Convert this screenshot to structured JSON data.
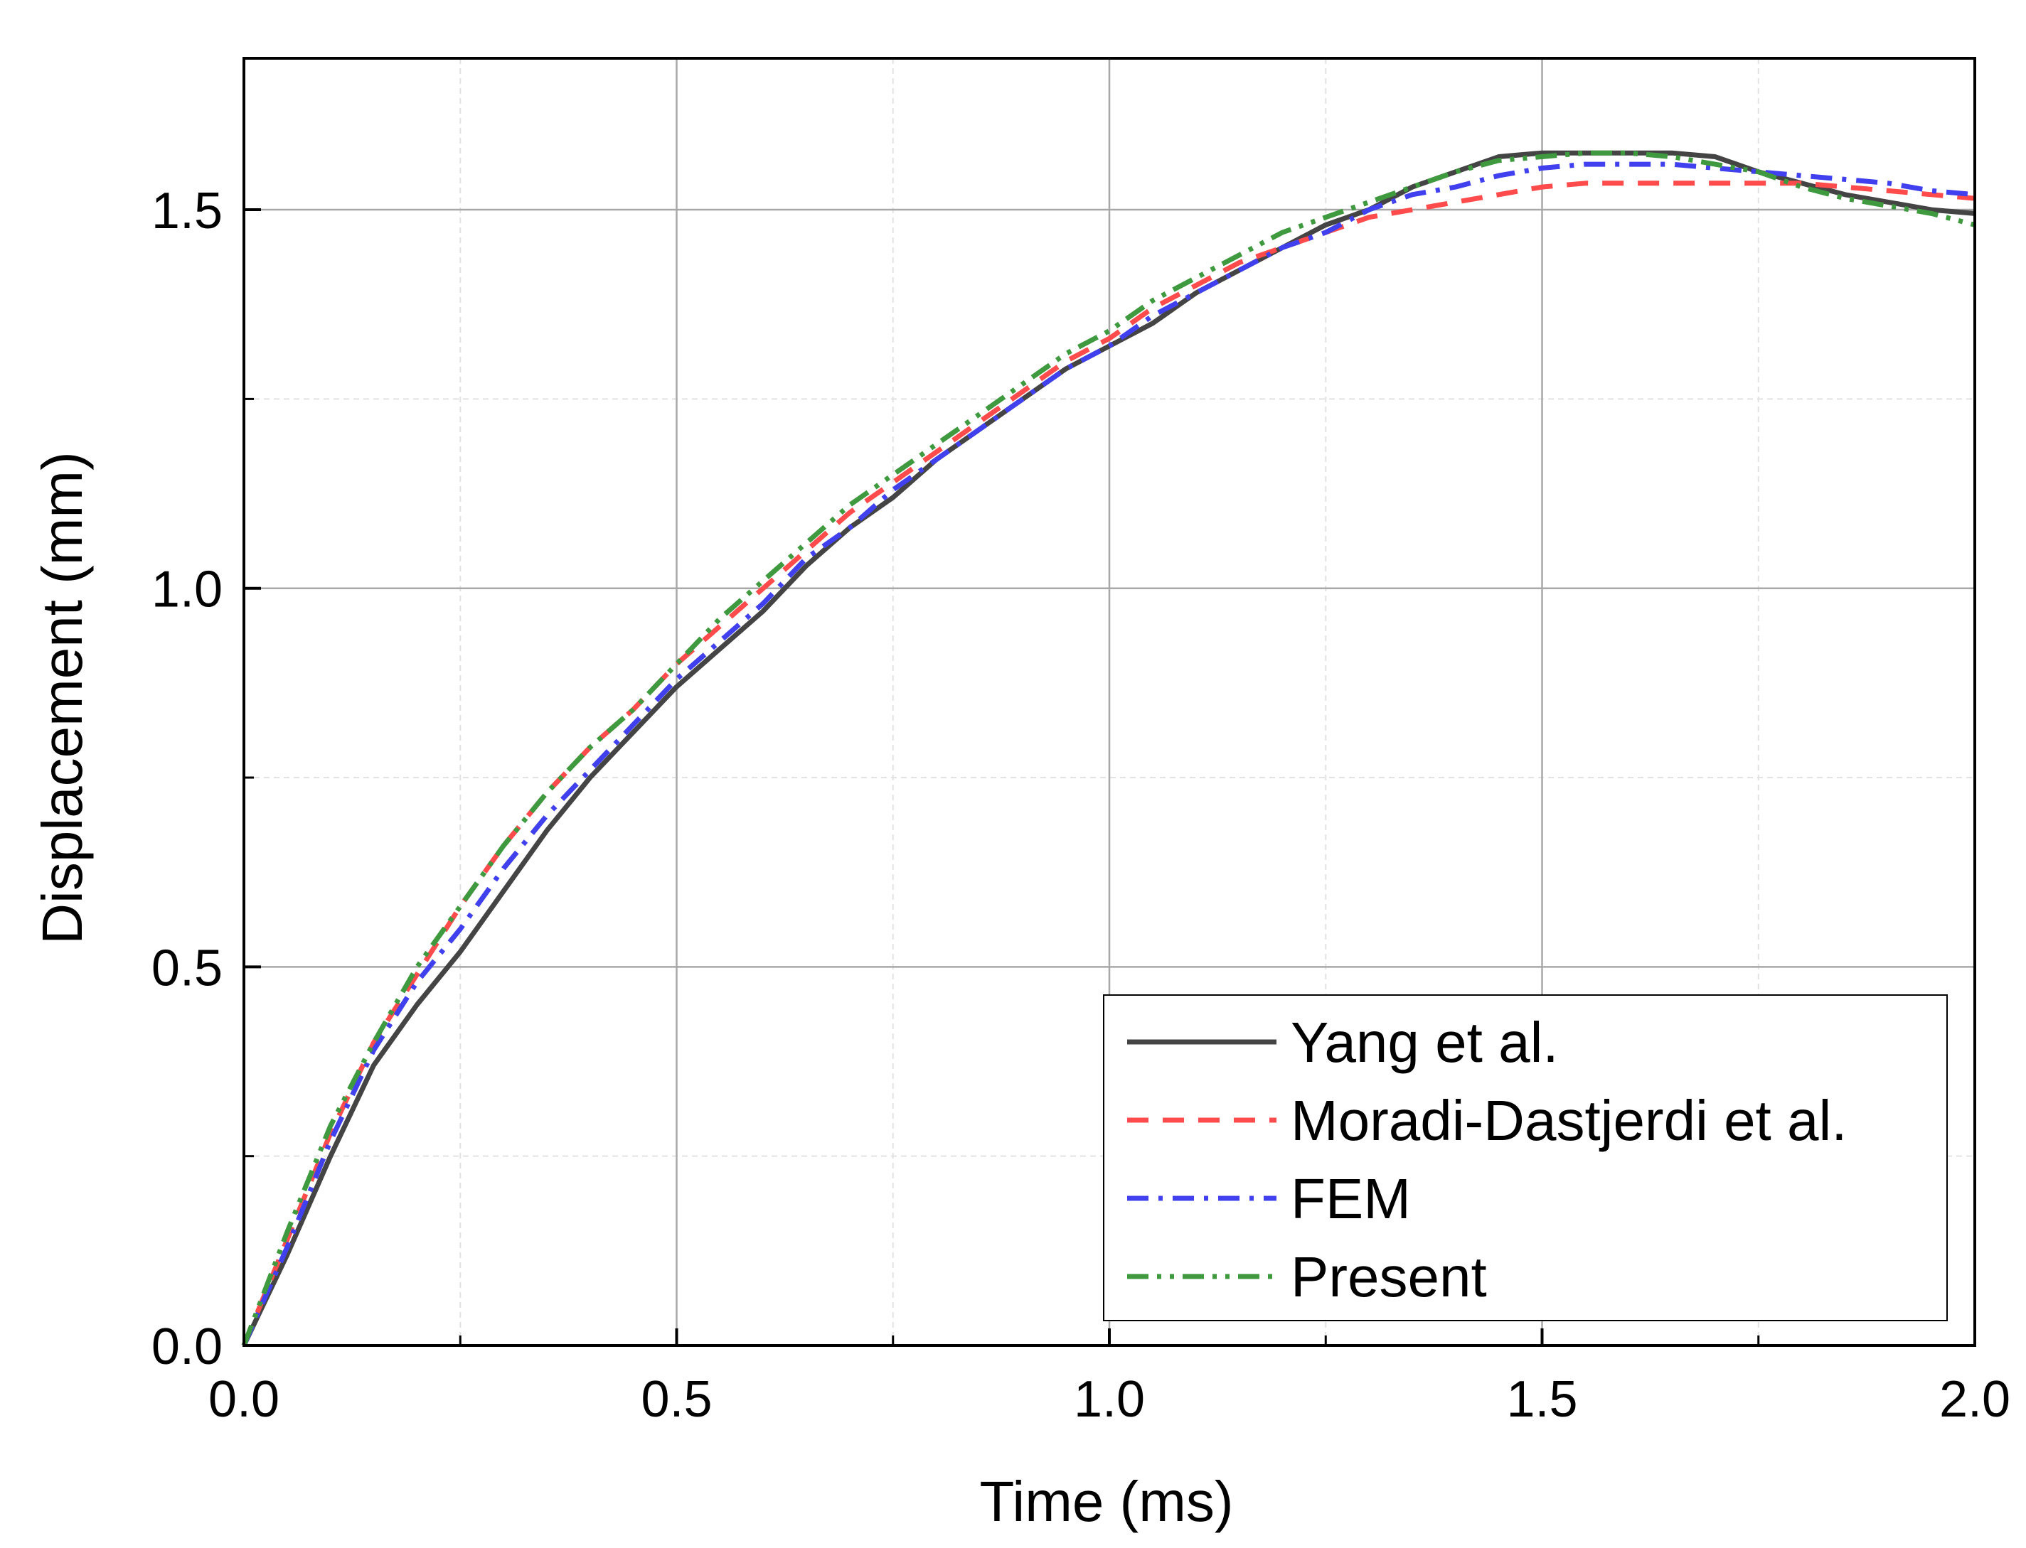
{
  "chart_data": {
    "type": "line",
    "title": "",
    "xlabel": "Time (ms)",
    "ylabel": "Displacement (mm)",
    "xlim": [
      0,
      2.0
    ],
    "ylim": [
      0,
      1.7
    ],
    "xticks": [
      0,
      0.5,
      1.0,
      1.5,
      2.0
    ],
    "xtick_labels": [
      "0.0",
      "0.5",
      "1.0",
      "1.5",
      "2.0"
    ],
    "xticks_minor": [
      0.25,
      0.75,
      1.25,
      1.75
    ],
    "yticks": [
      0,
      0.5,
      1.0,
      1.5
    ],
    "ytick_labels": [
      "0.0",
      "0.5",
      "1.0",
      "1.5"
    ],
    "yticks_minor": [
      0.25,
      0.75,
      1.25
    ],
    "grid": true,
    "legend_position": "bottom-right",
    "series": [
      {
        "name": "Yang et al.",
        "color": "#444444",
        "style": "solid",
        "x": [
          0,
          0.05,
          0.1,
          0.15,
          0.2,
          0.25,
          0.3,
          0.35,
          0.4,
          0.45,
          0.5,
          0.55,
          0.6,
          0.65,
          0.7,
          0.75,
          0.8,
          0.85,
          0.9,
          0.95,
          1.0,
          1.05,
          1.1,
          1.15,
          1.2,
          1.25,
          1.3,
          1.35,
          1.4,
          1.45,
          1.5,
          1.55,
          1.6,
          1.65,
          1.7,
          1.75,
          1.8,
          1.85,
          1.9,
          1.95,
          2.0
        ],
        "y": [
          0,
          0.12,
          0.25,
          0.37,
          0.45,
          0.52,
          0.6,
          0.68,
          0.75,
          0.81,
          0.87,
          0.92,
          0.97,
          1.03,
          1.08,
          1.12,
          1.17,
          1.21,
          1.25,
          1.29,
          1.32,
          1.35,
          1.39,
          1.42,
          1.45,
          1.48,
          1.5,
          1.53,
          1.55,
          1.57,
          1.575,
          1.575,
          1.575,
          1.575,
          1.57,
          1.55,
          1.535,
          1.52,
          1.51,
          1.5,
          1.495
        ]
      },
      {
        "name": "Moradi-Dastjerdi et al.",
        "color": "#ff4b4b",
        "style": "dash",
        "x": [
          0,
          0.05,
          0.1,
          0.15,
          0.2,
          0.25,
          0.3,
          0.35,
          0.4,
          0.45,
          0.5,
          0.55,
          0.6,
          0.65,
          0.7,
          0.75,
          0.8,
          0.85,
          0.9,
          0.95,
          1.0,
          1.05,
          1.1,
          1.15,
          1.2,
          1.25,
          1.3,
          1.35,
          1.4,
          1.45,
          1.5,
          1.55,
          1.6,
          1.65,
          1.7,
          1.75,
          1.8,
          1.85,
          1.9,
          1.95,
          2.0
        ],
        "y": [
          0,
          0.14,
          0.28,
          0.4,
          0.49,
          0.58,
          0.66,
          0.73,
          0.79,
          0.84,
          0.9,
          0.95,
          1.0,
          1.05,
          1.1,
          1.14,
          1.18,
          1.22,
          1.26,
          1.3,
          1.33,
          1.37,
          1.4,
          1.43,
          1.45,
          1.47,
          1.49,
          1.5,
          1.51,
          1.52,
          1.53,
          1.535,
          1.535,
          1.535,
          1.535,
          1.535,
          1.535,
          1.53,
          1.525,
          1.52,
          1.515
        ]
      },
      {
        "name": "FEM",
        "color": "#4040ee",
        "style": "dashdot",
        "x": [
          0,
          0.05,
          0.1,
          0.15,
          0.2,
          0.25,
          0.3,
          0.35,
          0.4,
          0.45,
          0.5,
          0.55,
          0.6,
          0.65,
          0.7,
          0.75,
          0.8,
          0.85,
          0.9,
          0.95,
          1.0,
          1.05,
          1.1,
          1.15,
          1.2,
          1.25,
          1.3,
          1.35,
          1.4,
          1.45,
          1.5,
          1.55,
          1.6,
          1.65,
          1.7,
          1.75,
          1.8,
          1.85,
          1.9,
          1.95,
          2.0
        ],
        "y": [
          0,
          0.13,
          0.27,
          0.39,
          0.48,
          0.55,
          0.63,
          0.7,
          0.76,
          0.82,
          0.88,
          0.93,
          0.98,
          1.04,
          1.08,
          1.13,
          1.17,
          1.21,
          1.25,
          1.29,
          1.32,
          1.36,
          1.39,
          1.42,
          1.45,
          1.47,
          1.5,
          1.52,
          1.53,
          1.545,
          1.555,
          1.56,
          1.56,
          1.56,
          1.555,
          1.55,
          1.545,
          1.54,
          1.535,
          1.525,
          1.52
        ]
      },
      {
        "name": "Present",
        "color": "#3f9a3f",
        "style": "dashdotdot",
        "x": [
          0,
          0.05,
          0.1,
          0.15,
          0.2,
          0.25,
          0.3,
          0.35,
          0.4,
          0.45,
          0.5,
          0.55,
          0.6,
          0.65,
          0.7,
          0.75,
          0.8,
          0.85,
          0.9,
          0.95,
          1.0,
          1.05,
          1.1,
          1.15,
          1.2,
          1.25,
          1.3,
          1.35,
          1.4,
          1.45,
          1.5,
          1.55,
          1.6,
          1.65,
          1.7,
          1.75,
          1.8,
          1.85,
          1.9,
          1.95,
          2.0
        ],
        "y": [
          0,
          0.15,
          0.29,
          0.4,
          0.5,
          0.58,
          0.66,
          0.73,
          0.79,
          0.84,
          0.9,
          0.96,
          1.01,
          1.06,
          1.11,
          1.15,
          1.19,
          1.23,
          1.27,
          1.31,
          1.34,
          1.38,
          1.41,
          1.44,
          1.47,
          1.49,
          1.51,
          1.53,
          1.55,
          1.565,
          1.57,
          1.575,
          1.575,
          1.57,
          1.56,
          1.55,
          1.53,
          1.515,
          1.505,
          1.495,
          1.48
        ]
      }
    ]
  }
}
